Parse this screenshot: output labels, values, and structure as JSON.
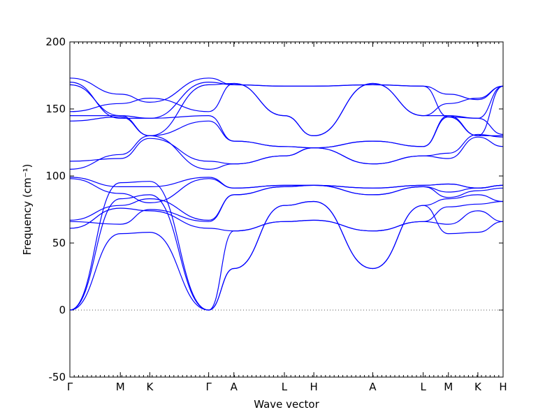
{
  "chart_data": {
    "type": "line",
    "xlabel": "Wave vector",
    "ylabel": "Frequency (cm⁻¹)",
    "ylim": [
      -50,
      200
    ],
    "y_ticks": [
      -50,
      0,
      50,
      100,
      150,
      200
    ],
    "x_path_labels": [
      "Γ",
      "M",
      "K",
      "Γ",
      "A",
      "L",
      "H",
      "A",
      "L",
      "M",
      "K",
      "H"
    ],
    "x_path_positions": [
      0.0,
      0.6,
      0.95,
      1.65,
      1.95,
      2.55,
      2.9,
      3.6,
      4.2,
      4.5,
      4.85,
      5.15
    ],
    "zero_line": "dotted",
    "line_color": "#0000ff",
    "series": [
      {
        "x": [
          0,
          0.6,
          0.95,
          1.65,
          1.95,
          2.55,
          2.9,
          3.6,
          4.2,
          4.5,
          4.85,
          5.15
        ],
        "values": [
          0,
          57,
          58,
          0,
          31,
          78,
          81,
          31,
          78,
          57,
          58,
          66
        ]
      },
      {
        "x": [
          0,
          0.6,
          0.95,
          1.65,
          1.95,
          2.55,
          2.9,
          3.6,
          4.2,
          4.5,
          4.85,
          5.15
        ],
        "values": [
          0,
          83,
          86,
          0,
          31,
          78,
          81,
          31,
          78,
          83,
          86,
          81
        ]
      },
      {
        "x": [
          0,
          0.6,
          0.95,
          1.65,
          1.95,
          2.55,
          2.9,
          3.6,
          4.2,
          4.5,
          4.85,
          5.15
        ],
        "values": [
          0,
          95,
          96,
          0,
          59,
          66,
          67,
          59,
          66,
          64,
          74,
          66
        ]
      },
      {
        "x": [
          0,
          0.6,
          0.95,
          1.65,
          1.95,
          2.55,
          2.9,
          3.6,
          4.2,
          4.5,
          4.85,
          5.15
        ],
        "values": [
          61,
          76,
          74,
          61,
          59,
          66,
          67,
          59,
          66,
          77,
          79,
          81
        ]
      },
      {
        "x": [
          0,
          0.6,
          0.95,
          1.65,
          1.95,
          2.55,
          2.9,
          3.6,
          4.2,
          4.5,
          4.85,
          5.15
        ],
        "values": [
          66,
          64,
          75,
          66,
          86,
          92,
          93,
          86,
          92,
          84,
          89,
          91
        ]
      },
      {
        "x": [
          0,
          0.6,
          0.95,
          1.65,
          1.95,
          2.55,
          2.9,
          3.6,
          4.2,
          4.5,
          4.85,
          5.15
        ],
        "values": [
          67,
          78,
          83,
          67,
          86,
          92,
          93,
          86,
          92,
          88,
          91,
          93
        ]
      },
      {
        "x": [
          0,
          0.6,
          0.95,
          1.65,
          1.95,
          2.55,
          2.9,
          3.6,
          4.2,
          4.5,
          4.85,
          5.15
        ],
        "values": [
          98,
          87,
          80,
          98,
          91,
          93,
          93,
          91,
          93,
          94,
          91,
          93
        ]
      },
      {
        "x": [
          0,
          0.6,
          0.95,
          1.65,
          1.95,
          2.55,
          2.9,
          3.6,
          4.2,
          4.5,
          4.85,
          5.15
        ],
        "values": [
          99,
          92,
          92,
          99,
          91,
          93,
          93,
          91,
          93,
          94,
          91,
          93
        ]
      },
      {
        "x": [
          0,
          0.6,
          0.95,
          1.65,
          1.95,
          2.55,
          2.9,
          3.6,
          4.2,
          4.5,
          4.85,
          5.15
        ],
        "values": [
          105,
          116,
          130,
          105,
          109,
          115,
          121,
          109,
          115,
          113,
          129,
          122
        ]
      },
      {
        "x": [
          0,
          0.6,
          0.95,
          1.65,
          1.95,
          2.55,
          2.9,
          3.6,
          4.2,
          4.5,
          4.85,
          5.15
        ],
        "values": [
          111,
          113,
          128,
          111,
          109,
          115,
          121,
          109,
          115,
          117,
          131,
          129
        ]
      },
      {
        "x": [
          0,
          0.6,
          0.95,
          1.65,
          1.95,
          2.55,
          2.9,
          3.6,
          4.2,
          4.5,
          4.85,
          5.15
        ],
        "values": [
          141,
          144,
          130,
          141,
          126,
          122,
          121,
          126,
          122,
          144,
          130,
          130
        ]
      },
      {
        "x": [
          0,
          0.6,
          0.95,
          1.65,
          1.95,
          2.55,
          2.9,
          3.6,
          4.2,
          4.5,
          4.85,
          5.15
        ],
        "values": [
          145,
          145,
          143,
          145,
          126,
          122,
          121,
          126,
          122,
          145,
          143,
          131
        ]
      },
      {
        "x": [
          0,
          0.6,
          0.95,
          1.65,
          1.95,
          2.55,
          2.9,
          3.6,
          4.2,
          4.5,
          4.85,
          5.15
        ],
        "values": [
          148,
          154,
          158,
          148,
          169,
          145,
          130,
          169,
          145,
          154,
          158,
          167
        ]
      },
      {
        "x": [
          0,
          0.6,
          0.95,
          1.65,
          1.95,
          2.55,
          2.9,
          3.6,
          4.2,
          4.5,
          4.85,
          5.15
        ],
        "values": [
          168,
          145,
          130,
          168,
          169,
          145,
          130,
          169,
          145,
          145,
          130,
          167
        ]
      },
      {
        "x": [
          0,
          0.6,
          0.95,
          1.65,
          1.95,
          2.55,
          2.9,
          3.6,
          4.2,
          4.5,
          4.85,
          5.15
        ],
        "values": [
          170,
          143,
          143,
          170,
          168,
          167,
          167,
          168,
          167,
          144,
          143,
          167
        ]
      },
      {
        "x": [
          0,
          0.6,
          0.95,
          1.65,
          1.95,
          2.55,
          2.9,
          3.6,
          4.2,
          4.5,
          4.85,
          5.15
        ],
        "values": [
          173,
          161,
          155,
          173,
          168,
          167,
          167,
          168,
          167,
          161,
          157,
          167
        ]
      }
    ]
  }
}
